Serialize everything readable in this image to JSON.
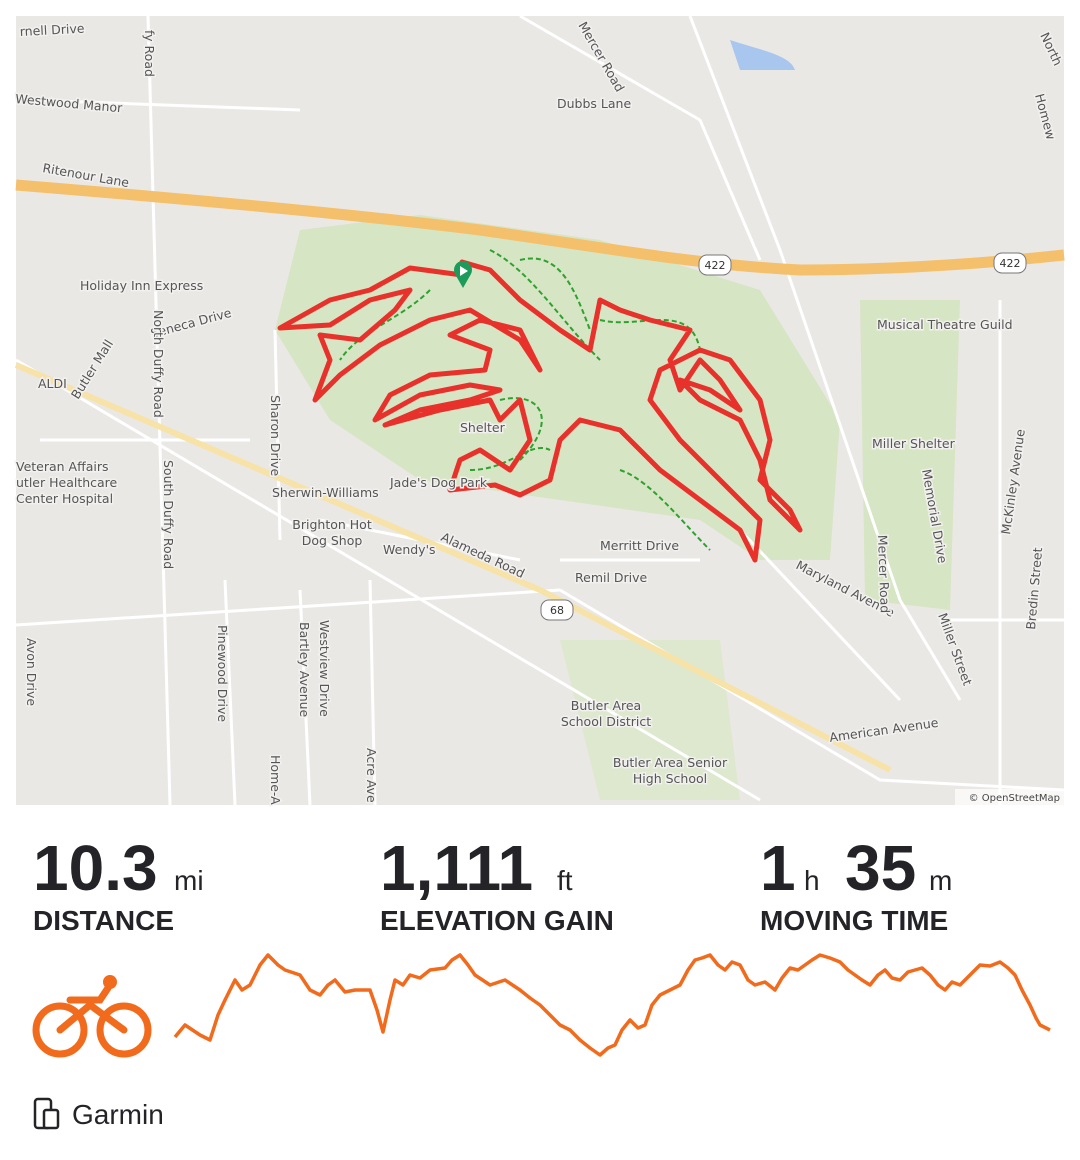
{
  "map": {
    "labels": [
      "rnell Drive",
      "fy Road",
      "Westwood Manor",
      "Ritenour Lane",
      "Dubbs Lane",
      "Mercer Road",
      "North",
      "Homew",
      "Holiday Inn Express",
      "Seneca Drive",
      "Butler Mall",
      "ALDI",
      "North Duffy Road",
      "South Duffy Road",
      "Veteran Affairs",
      "utler Healthcare",
      "Center Hospital",
      "Sharon Drive",
      "Sherwin-Williams",
      "Brighton Hot",
      "Dog Shop",
      "Wendy's",
      "Alameda Road",
      "Jade's Dog Park",
      "Shelter",
      "Merritt Drive",
      "Remil Drive",
      "Maryland Avenue",
      "Mercer Road",
      "Musical Theatre Guild",
      "Miller Shelter",
      "Memorial Drive",
      "Miller Street",
      "McKinley Avenue",
      "Bredin Street",
      "American Avenue",
      "Butler Area",
      "School District",
      "Butler Area Senior",
      "High School",
      "Pinewood Drive",
      "Bartley Avenue",
      "Westview Drive",
      "Avon Drive",
      "Acre Ave",
      "Home-A"
    ],
    "shields": [
      "422",
      "422",
      "68"
    ],
    "attribution": "© OpenStreetMap"
  },
  "stats": [
    {
      "value": "10.3",
      "unit": "mi",
      "label": "DISTANCE"
    },
    {
      "value": "1,111",
      "unit": "ft",
      "label": "ELEVATION GAIN"
    },
    {
      "hours": "1",
      "hours_unit": "h",
      "minutes": "35",
      "minutes_unit": "m",
      "label": "MOVING TIME"
    }
  ],
  "source": "Garmin"
}
